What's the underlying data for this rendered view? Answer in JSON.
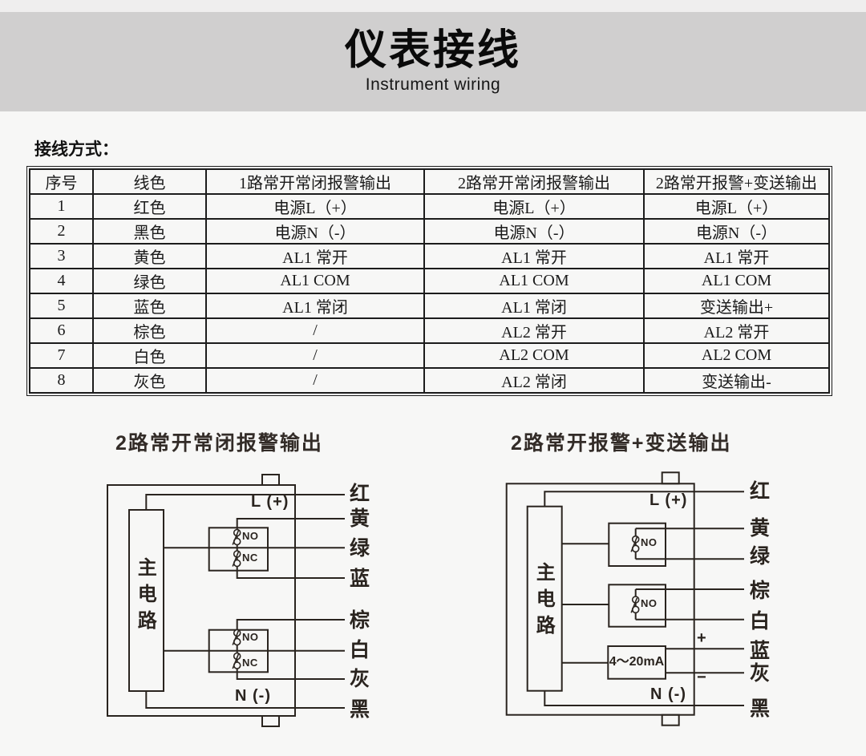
{
  "banner": {
    "title": "仪表接线",
    "subtitle": "Instrument wiring"
  },
  "section": {
    "label": "接线方式："
  },
  "table": {
    "headers": [
      "序号",
      "线色",
      "1路常开常闭报警输出",
      "2路常开常闭报警输出",
      "2路常开报警+变送输出"
    ],
    "rows": [
      [
        "1",
        "红色",
        "电源L（+）",
        "电源L（+）",
        "电源L（+）"
      ],
      [
        "2",
        "黑色",
        "电源N（-）",
        "电源N（-）",
        "电源N（-）"
      ],
      [
        "3",
        "黄色",
        "AL1 常开",
        "AL1 常开",
        "AL1 常开"
      ],
      [
        "4",
        "绿色",
        "AL1 COM",
        "AL1 COM",
        "AL1 COM"
      ],
      [
        "5",
        "蓝色",
        "AL1 常闭",
        "AL1 常闭",
        "变送输出+"
      ],
      [
        "6",
        "棕色",
        "/",
        "AL2 常开",
        "AL2 常开"
      ],
      [
        "7",
        "白色",
        "/",
        "AL2 COM",
        "AL2 COM"
      ],
      [
        "8",
        "灰色",
        "/",
        "AL2 常闭",
        "变送输出-"
      ]
    ]
  },
  "diagram_left": {
    "title": "2路常开常闭报警输出",
    "main_circuit": "主电路",
    "l_label": "L (+)",
    "n_label": "N (-)",
    "relay1": {
      "no": "NO",
      "nc": "NC"
    },
    "relay2": {
      "no": "NO",
      "nc": "NC"
    },
    "wire_labels": [
      "红",
      "黄",
      "绿",
      "蓝",
      "棕",
      "白",
      "灰",
      "黑"
    ]
  },
  "diagram_right": {
    "title": "2路常开报警+变送输出",
    "main_circuit": "主电路",
    "l_label": "L (+)",
    "n_label": "N (-)",
    "relay1_no": "NO",
    "relay2_no": "NO",
    "transmitter": "4～20mA",
    "plus": "+",
    "minus": "−",
    "wire_labels": [
      "红",
      "黄",
      "绿",
      "棕",
      "白",
      "蓝",
      "灰",
      "黑"
    ]
  }
}
